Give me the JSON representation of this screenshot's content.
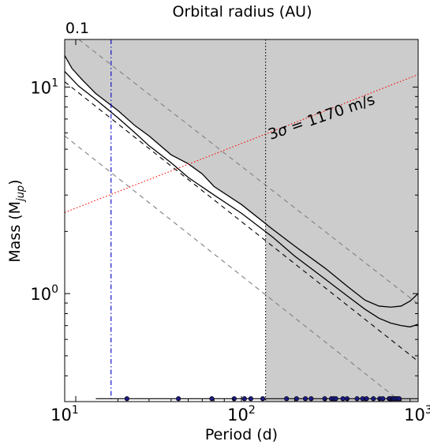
{
  "chart_data": {
    "type": "line",
    "x_scale": "log",
    "y_scale": "log",
    "xlim": [
      10,
      1000
    ],
    "ylim": [
      0.3,
      17.0
    ],
    "xlabel": "Period (d)",
    "ylabel": "Mass (M",
    "ylabel_sub": "jup",
    "ylabel_close": ")",
    "top_axis_label": "Orbital radius (AU)",
    "top_tick_label": "0.1",
    "top_tick_at_period": 11.55,
    "x_tick_labels": [
      {
        "value": 10,
        "base": "10",
        "exp": "1"
      },
      {
        "value": 100,
        "base": "10",
        "exp": "2"
      },
      {
        "value": 1000,
        "base": "10",
        "exp": "3"
      }
    ],
    "y_tick_labels": [
      {
        "value": 1,
        "base": "10",
        "exp": "0"
      },
      {
        "value": 10,
        "base": "10",
        "exp": "1"
      }
    ],
    "annotation": {
      "prefix": "3",
      "sigma": "σ",
      "suffix": " = 1170 m/s",
      "period": 290,
      "mass": 6.8,
      "angle_deg": -19
    },
    "shading_color": "#cccccc",
    "shaded_region": {
      "x_split": 137,
      "upper_curve": [
        [
          10,
          14.2
        ],
        [
          11,
          12.3
        ],
        [
          12.5,
          10.9
        ],
        [
          15,
          9.3
        ],
        [
          20,
          7.7
        ],
        [
          25,
          6.5
        ],
        [
          30,
          5.8
        ],
        [
          40,
          4.7
        ],
        [
          50,
          4.25
        ],
        [
          60,
          3.8
        ],
        [
          70,
          3.3
        ],
        [
          100,
          2.7
        ],
        [
          150,
          2.05
        ],
        [
          200,
          1.7
        ],
        [
          300,
          1.32
        ],
        [
          400,
          1.08
        ],
        [
          500,
          0.93
        ],
        [
          600,
          0.87
        ],
        [
          700,
          0.86
        ],
        [
          800,
          0.87
        ],
        [
          900,
          0.92
        ],
        [
          1000,
          1.0
        ]
      ]
    },
    "series": [
      {
        "color": "#000000",
        "style": "solid",
        "points": [
          [
            10,
            14.2
          ],
          [
            11,
            12.3
          ],
          [
            12.5,
            10.9
          ],
          [
            15,
            9.3
          ],
          [
            20,
            7.7
          ],
          [
            25,
            6.5
          ],
          [
            30,
            5.8
          ],
          [
            40,
            4.7
          ],
          [
            50,
            4.25
          ],
          [
            60,
            3.8
          ],
          [
            70,
            3.3
          ],
          [
            100,
            2.7
          ],
          [
            150,
            2.05
          ],
          [
            200,
            1.7
          ],
          [
            300,
            1.32
          ],
          [
            400,
            1.08
          ],
          [
            500,
            0.93
          ],
          [
            600,
            0.87
          ],
          [
            700,
            0.86
          ],
          [
            800,
            0.87
          ],
          [
            900,
            0.92
          ],
          [
            1000,
            1.0
          ]
        ]
      },
      {
        "color": "#000000",
        "style": "solid",
        "points": [
          [
            10,
            11.9
          ],
          [
            12,
            10.1
          ],
          [
            15,
            8.7
          ],
          [
            20,
            7.1
          ],
          [
            25,
            6.0
          ],
          [
            30,
            5.2
          ],
          [
            40,
            4.3
          ],
          [
            50,
            3.65
          ],
          [
            70,
            3.0
          ],
          [
            100,
            2.45
          ],
          [
            150,
            1.88
          ],
          [
            200,
            1.52
          ],
          [
            300,
            1.17
          ],
          [
            400,
            0.97
          ],
          [
            500,
            0.84
          ],
          [
            600,
            0.76
          ],
          [
            700,
            0.72
          ],
          [
            800,
            0.7
          ],
          [
            900,
            0.69
          ],
          [
            1000,
            0.71
          ]
        ]
      },
      {
        "color": "#000000",
        "style": "dashed",
        "points": [
          [
            10,
            10.6
          ],
          [
            1000,
            0.47
          ]
        ]
      },
      {
        "color": "#808080",
        "style": "dashed",
        "points": [
          [
            12,
            17.0
          ],
          [
            1000,
            0.89
          ]
        ]
      },
      {
        "color": "#808080",
        "style": "dashed",
        "points": [
          [
            10,
            5.8
          ],
          [
            1000,
            0.257
          ]
        ]
      },
      {
        "color": "#ff0000",
        "style": "dotted",
        "points": [
          [
            10,
            2.47
          ],
          [
            1000,
            11.5
          ]
        ]
      },
      {
        "color": "#0000cc",
        "style": "dashdot",
        "vertical_at_period": 18.3
      },
      {
        "color": "#000000",
        "style": "dotted",
        "vertical_at_period": 137
      }
    ],
    "baseline": {
      "mass": 0.31,
      "x_start": 15
    },
    "detections": {
      "mass": 0.31,
      "color": "#1a1a80",
      "periods": [
        22.5,
        44,
        68,
        91,
        104,
        113,
        132,
        180,
        205,
        230,
        248,
        296,
        323,
        333,
        342,
        375,
        396,
        451,
        485,
        510,
        558,
        606,
        631,
        685,
        697,
        712,
        730,
        746,
        764,
        781
      ]
    }
  }
}
